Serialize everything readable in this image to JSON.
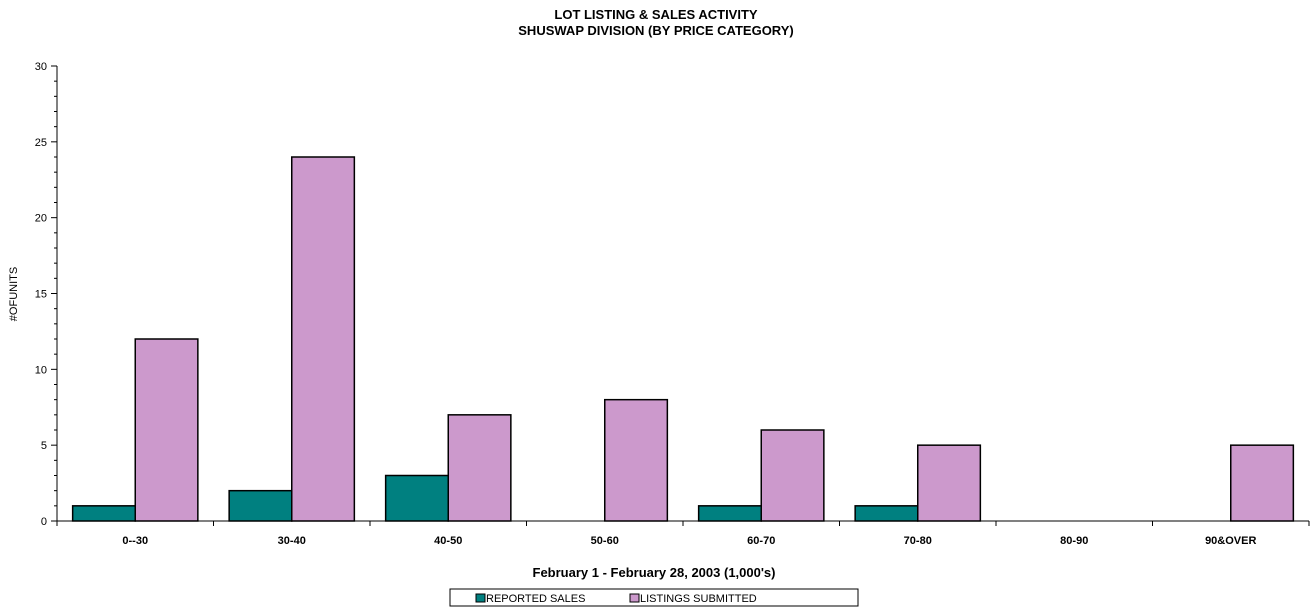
{
  "chart_data": {
    "type": "bar",
    "title_line1": "LOT LISTING & SALES ACTIVITY",
    "title_line2": "SHUSWAP DIVISION (BY PRICE CATEGORY)",
    "xlabel": "February 1 - February 28, 2003 (1,000's)",
    "ylabel": "#OFUNITS",
    "ylim": [
      0,
      30
    ],
    "yticks": [
      0,
      5,
      10,
      15,
      20,
      25,
      30
    ],
    "categories": [
      "0--30",
      "30-40",
      "40-50",
      "50-60",
      "60-70",
      "70-80",
      "80-90",
      "90&OVER"
    ],
    "series": [
      {
        "name": "REPORTED SALES",
        "color": "#008080",
        "values": [
          1,
          2,
          3,
          0,
          1,
          1,
          0,
          0
        ]
      },
      {
        "name": "LISTINGS SUBMITTED",
        "color": "#cc99cc",
        "values": [
          12,
          24,
          7,
          8,
          6,
          5,
          0,
          5
        ]
      }
    ],
    "grid": false,
    "legend_position": "bottom"
  }
}
